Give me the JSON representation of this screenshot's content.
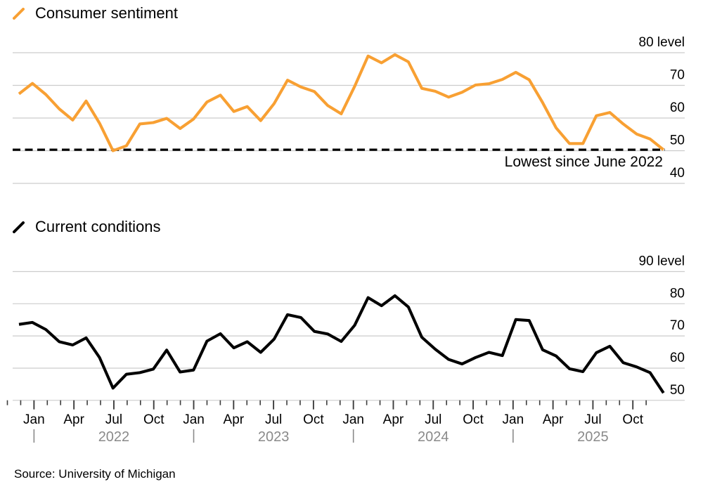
{
  "chart_data": [
    {
      "type": "line",
      "title": "Consumer sentiment",
      "legend": "Consumer sentiment",
      "color": "#F8A033",
      "frequency": "monthly",
      "x_start": "Nov 2021",
      "x_end": "Nov 2025",
      "values": [
        67.4,
        70.6,
        67.2,
        62.8,
        59.4,
        65.2,
        58.4,
        50.0,
        51.5,
        58.2,
        58.6,
        59.9,
        56.8,
        59.7,
        64.9,
        67.0,
        62.0,
        63.5,
        59.2,
        64.4,
        71.6,
        69.5,
        68.1,
        63.8,
        61.3,
        69.7,
        79.0,
        76.9,
        79.4,
        77.2,
        69.1,
        68.2,
        66.4,
        67.9,
        70.1,
        70.5,
        71.8,
        74.0,
        71.7,
        64.7,
        57.0,
        52.2,
        52.2,
        60.7,
        61.7,
        58.2,
        55.1,
        53.6,
        50.3
      ],
      "ylim": [
        40,
        80
      ],
      "yticks": [
        80,
        70,
        60,
        50,
        40
      ],
      "ytick_labels": [
        "80 level",
        "70",
        "60",
        "50",
        "40"
      ],
      "grid": "horizontal",
      "legend_position": "top-left",
      "reference_line": {
        "style": "dashed",
        "level": 50.3,
        "annotation": "Lowest since June 2022"
      }
    },
    {
      "type": "line",
      "title": "Current conditions",
      "legend": "Current conditions",
      "color": "#000000",
      "frequency": "monthly",
      "x_start": "Nov 2021",
      "x_end": "Nov 2025",
      "values": [
        73.6,
        74.2,
        72.0,
        68.2,
        67.2,
        69.4,
        63.3,
        53.8,
        58.1,
        58.6,
        59.7,
        65.6,
        58.8,
        59.4,
        68.4,
        70.7,
        66.3,
        68.2,
        64.9,
        69.0,
        76.6,
        75.7,
        71.4,
        70.6,
        68.3,
        73.3,
        81.9,
        79.4,
        82.5,
        79.0,
        69.6,
        65.9,
        62.7,
        61.3,
        63.3,
        64.9,
        63.9,
        75.1,
        74.8,
        65.7,
        63.8,
        59.8,
        58.9,
        64.8,
        66.8,
        61.7,
        60.4,
        58.6,
        52.3
      ],
      "ylim": [
        50,
        90
      ],
      "yticks": [
        90,
        80,
        70,
        60,
        50
      ],
      "ytick_labels": [
        "90 level",
        "80",
        "70",
        "60",
        "50"
      ],
      "grid": "horizontal",
      "legend_position": "top-left"
    }
  ],
  "x_axis": {
    "month_tick_labels": [
      "Jan",
      "Apr",
      "Jul",
      "Oct"
    ],
    "years": [
      "2022",
      "2023",
      "2024",
      "2025"
    ],
    "start": "Nov 2021",
    "end": "Nov 2025"
  },
  "source": "Source: University of Michigan",
  "colors": {
    "sentiment_line": "#F8A033",
    "conditions_line": "#000000",
    "gridline": "#cccccc",
    "tick": "#3d3d3d",
    "year_label": "#8a8a8a",
    "dashed_line": "#000000"
  }
}
